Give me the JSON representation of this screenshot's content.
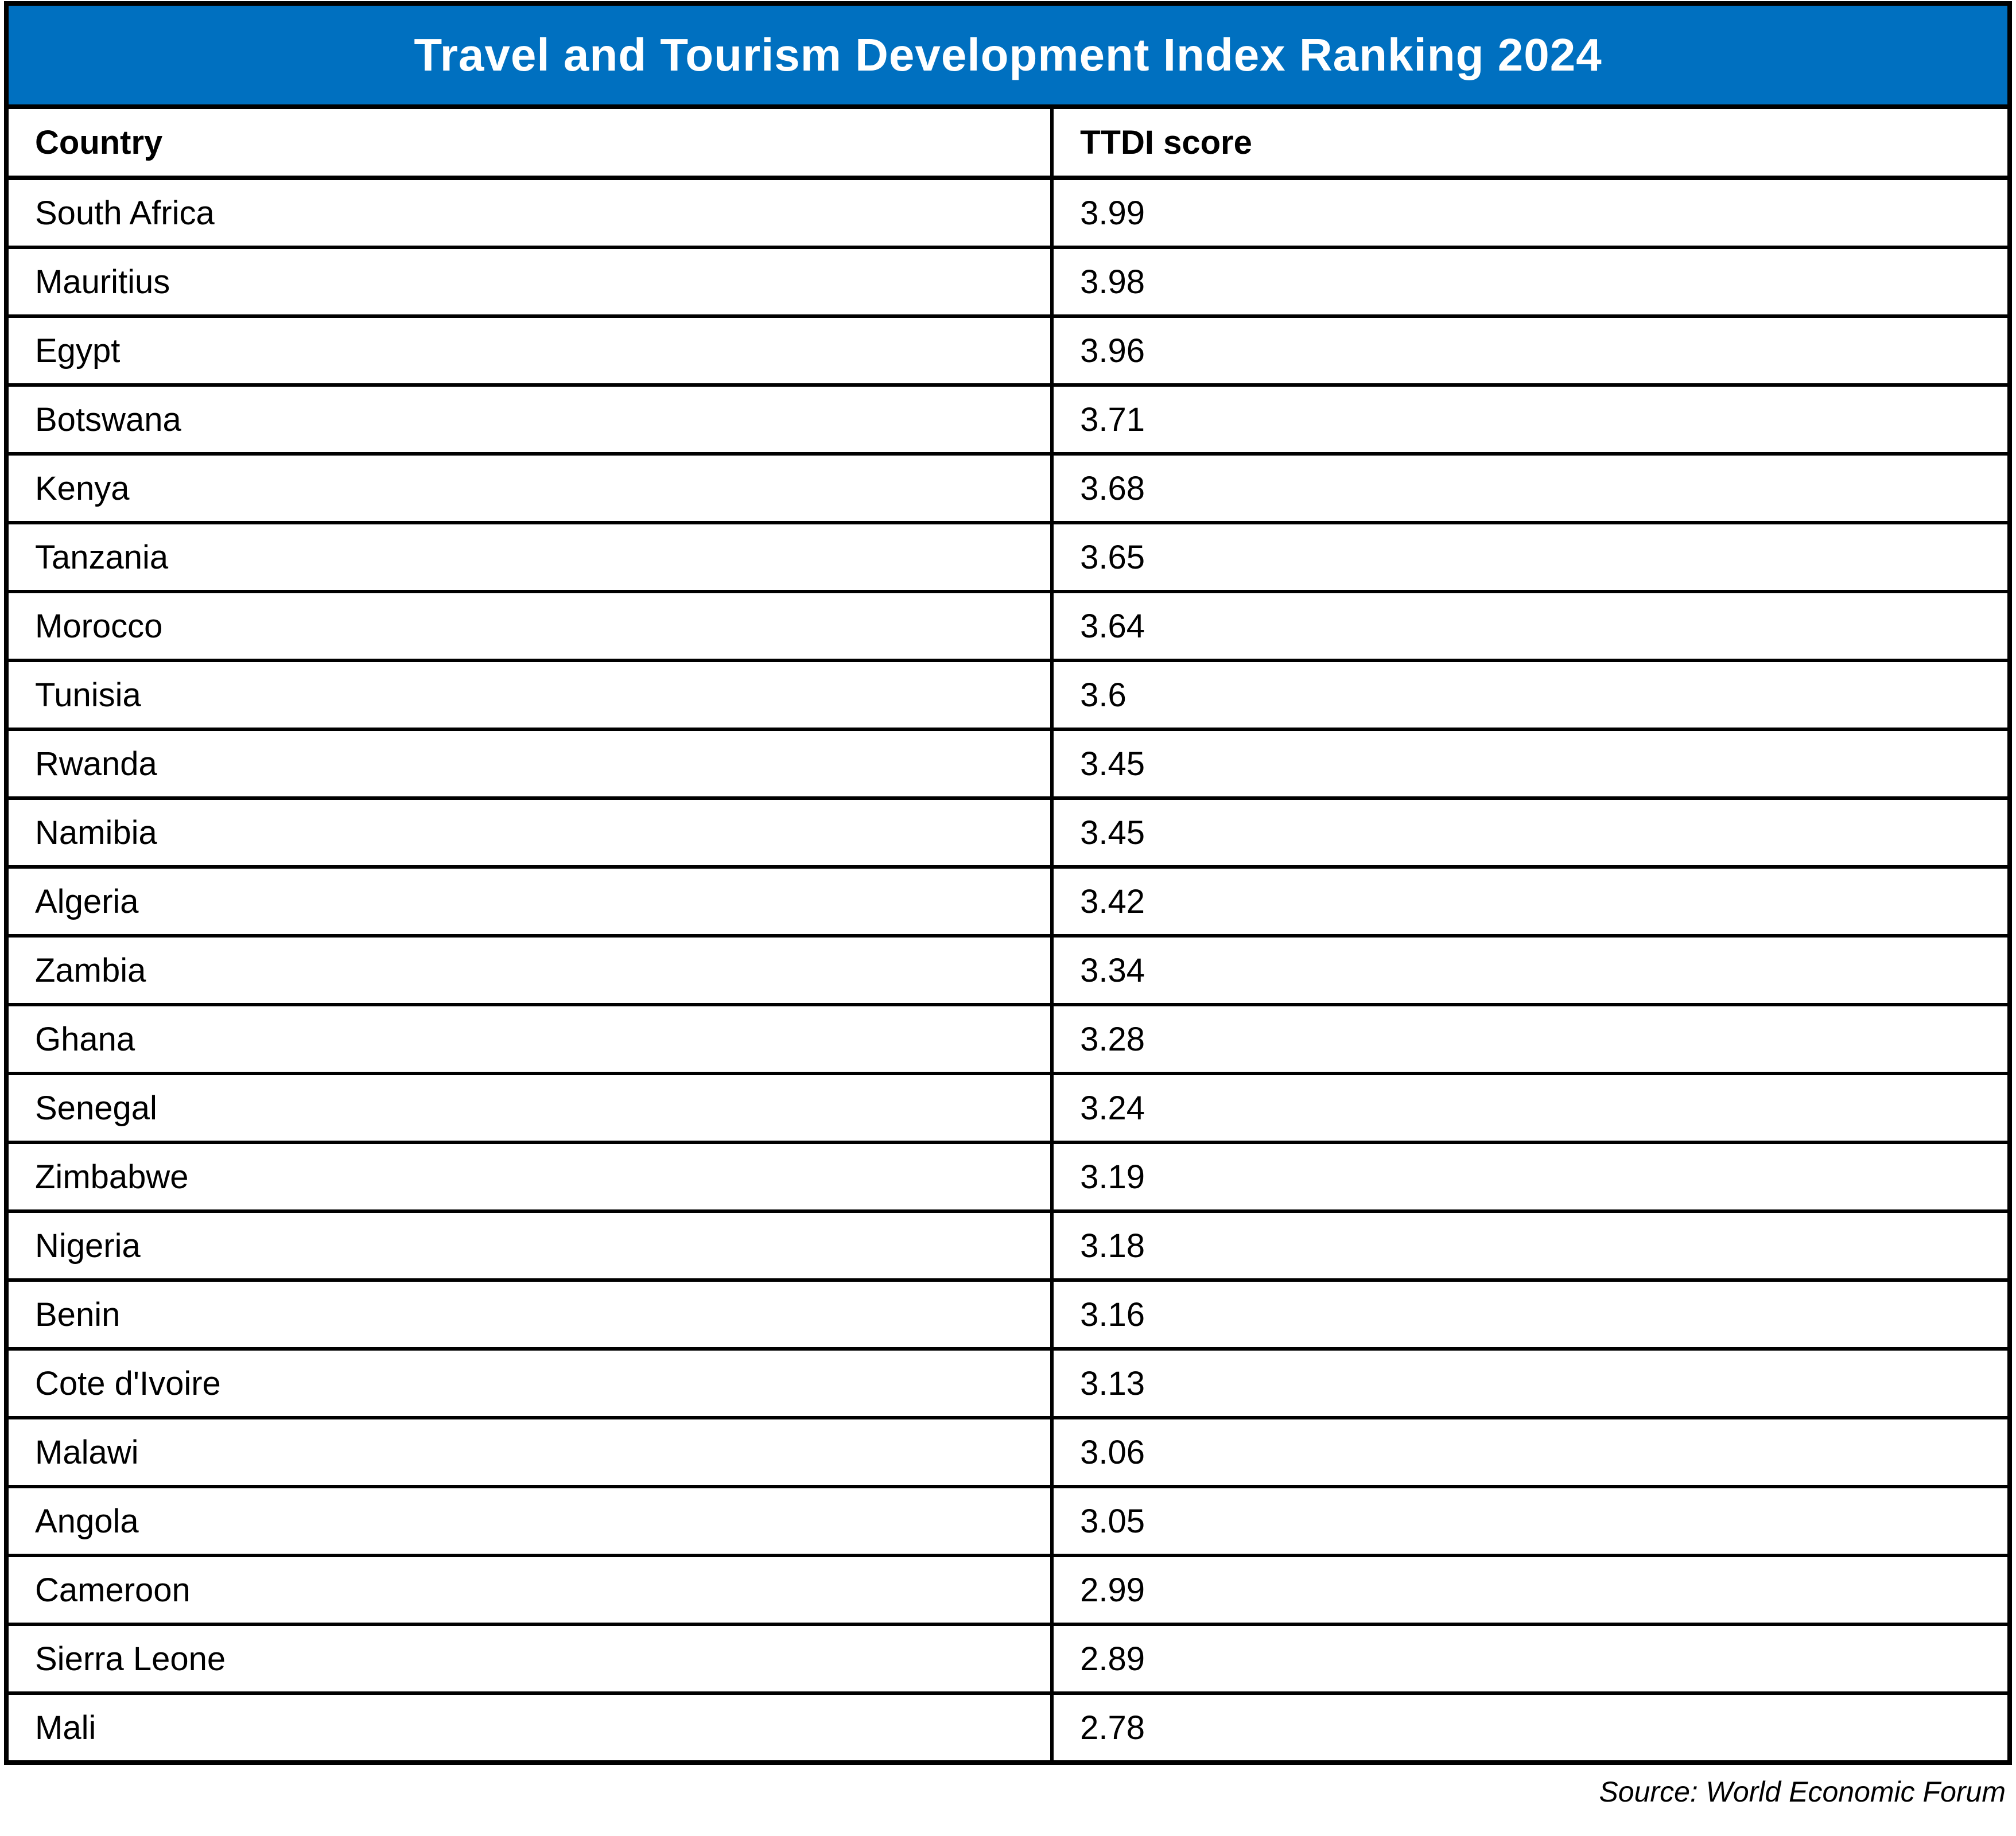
{
  "title": "Travel and Tourism Development Index Ranking 2024",
  "source_note": "Source: World Economic Forum",
  "colors": {
    "title_bg": "#0070C0",
    "title_text": "#FFFFFF",
    "grid_border": "#000000",
    "cell_bg": "#FFFFFF",
    "body_text": "#000000"
  },
  "chart_data": {
    "type": "table",
    "title": "Travel and Tourism Development Index Ranking 2024",
    "columns": [
      "Country",
      "TTDI score"
    ],
    "rows": [
      [
        "South Africa",
        3.99
      ],
      [
        "Mauritius",
        3.98
      ],
      [
        "Egypt",
        3.96
      ],
      [
        "Botswana",
        3.71
      ],
      [
        "Kenya",
        3.68
      ],
      [
        "Tanzania",
        3.65
      ],
      [
        "Morocco",
        3.64
      ],
      [
        "Tunisia",
        3.6
      ],
      [
        "Rwanda",
        3.45
      ],
      [
        "Namibia",
        3.45
      ],
      [
        "Algeria",
        3.42
      ],
      [
        "Zambia",
        3.34
      ],
      [
        "Ghana",
        3.28
      ],
      [
        "Senegal",
        3.24
      ],
      [
        "Zimbabwe",
        3.19
      ],
      [
        "Nigeria",
        3.18
      ],
      [
        "Benin",
        3.16
      ],
      [
        "Cote d'Ivoire",
        3.13
      ],
      [
        "Malawi",
        3.06
      ],
      [
        "Angola",
        3.05
      ],
      [
        "Cameroon",
        2.99
      ],
      [
        "Sierra Leone",
        2.89
      ],
      [
        "Mali",
        2.78
      ]
    ],
    "source": "Source: World Economic Forum",
    "layout": {
      "header_band_bg": "#0070C0",
      "grid": "solid black borders",
      "value_range": [
        2.78,
        3.99
      ]
    }
  }
}
